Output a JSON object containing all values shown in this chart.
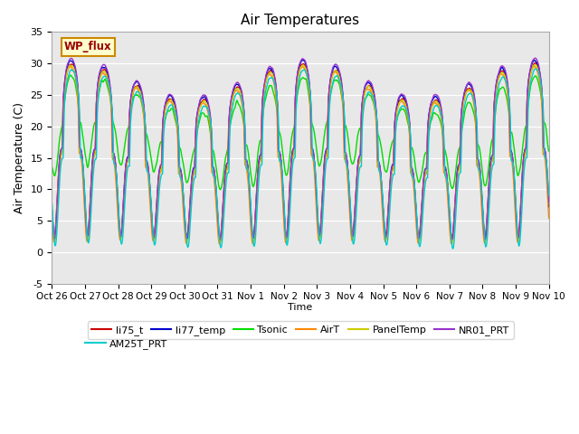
{
  "title": "Air Temperatures",
  "ylabel": "Air Temperature (C)",
  "xlabel": "Time",
  "ylim": [
    -5,
    35
  ],
  "background_color": "#e8e8e8",
  "figure_color": "#ffffff",
  "xtick_labels": [
    "Oct 26",
    "Oct 27",
    "Oct 28",
    "Oct 29",
    "Oct 30",
    "Oct 31",
    "Nov 1",
    "Nov 2",
    "Nov 3",
    "Nov 4",
    "Nov 5",
    "Nov 6",
    "Nov 7",
    "Nov 8",
    "Nov 9",
    "Nov 10"
  ],
  "legend": [
    {
      "label": "li75_t",
      "color": "#cc0000"
    },
    {
      "label": "li77_temp",
      "color": "#0000cc"
    },
    {
      "label": "Tsonic",
      "color": "#00dd00"
    },
    {
      "label": "AirT",
      "color": "#ff8800"
    },
    {
      "label": "PanelTemp",
      "color": "#cccc00"
    },
    {
      "label": "NR01_PRT",
      "color": "#9933cc"
    },
    {
      "label": "AM25T_PRT",
      "color": "#00cccc"
    }
  ],
  "wp_flux_box": {
    "text": "WP_flux",
    "facecolor": "#ffffcc",
    "edgecolor": "#cc8800",
    "textcolor": "#990000"
  },
  "n_points": 7200,
  "end_day": 15,
  "yticks": [
    -5,
    0,
    5,
    10,
    15,
    20,
    25,
    30,
    35
  ]
}
